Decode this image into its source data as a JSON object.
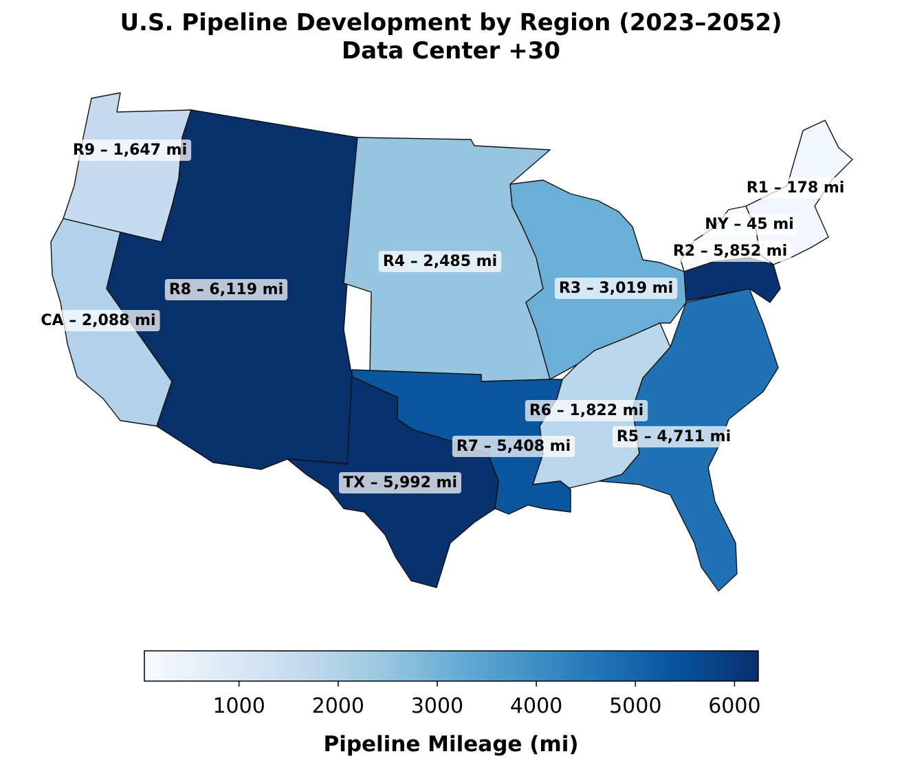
{
  "title": {
    "line1": "U.S. Pipeline Development by Region (2023–2052)",
    "line2": "Data Center +30"
  },
  "map_data": {
    "regions": [
      {
        "id": "R1",
        "label": "R1 – 178 mi",
        "value": 178,
        "color": "#f2f7fd"
      },
      {
        "id": "NY",
        "label": "NY – 45 mi",
        "value": 45,
        "color": "#f7fbff"
      },
      {
        "id": "R2",
        "label": "R2 – 5,852 mi",
        "value": 5852,
        "color": "#08326e"
      },
      {
        "id": "R3",
        "label": "R3 – 3,019 mi",
        "value": 3019,
        "color": "#6baed6"
      },
      {
        "id": "R4",
        "label": "R4 – 2,485 mi",
        "value": 2485,
        "color": "#97c4df"
      },
      {
        "id": "R5",
        "label": "R5 – 4,711 mi",
        "value": 4711,
        "color": "#2171b5"
      },
      {
        "id": "R6",
        "label": "R6 – 1,822 mi",
        "value": 1822,
        "color": "#bad6eb"
      },
      {
        "id": "R7",
        "label": "R7 – 5,408 mi",
        "value": 5408,
        "color": "#0b559f"
      },
      {
        "id": "R8",
        "label": "R8 – 6,119 mi",
        "value": 6119,
        "color": "#08306b"
      },
      {
        "id": "R9",
        "label": "R9 – 1,647 mi",
        "value": 1647,
        "color": "#c6dbef"
      },
      {
        "id": "CA",
        "label": "CA – 2,088 mi",
        "value": 2088,
        "color": "#b3d2e9"
      },
      {
        "id": "TX",
        "label": "TX – 5,992 mi",
        "value": 5992,
        "color": "#08326e"
      }
    ]
  },
  "colorbar": {
    "label": "Pipeline Mileage (mi)",
    "min": 45,
    "max": 6240,
    "ticks": [
      1000,
      2000,
      3000,
      4000,
      5000,
      6000
    ],
    "colormap": "Blues",
    "stops": [
      "#f7fbff",
      "#deebf7",
      "#c6dbef",
      "#9ecae1",
      "#6baed6",
      "#4292c6",
      "#2171b5",
      "#08519c",
      "#08306b"
    ]
  }
}
